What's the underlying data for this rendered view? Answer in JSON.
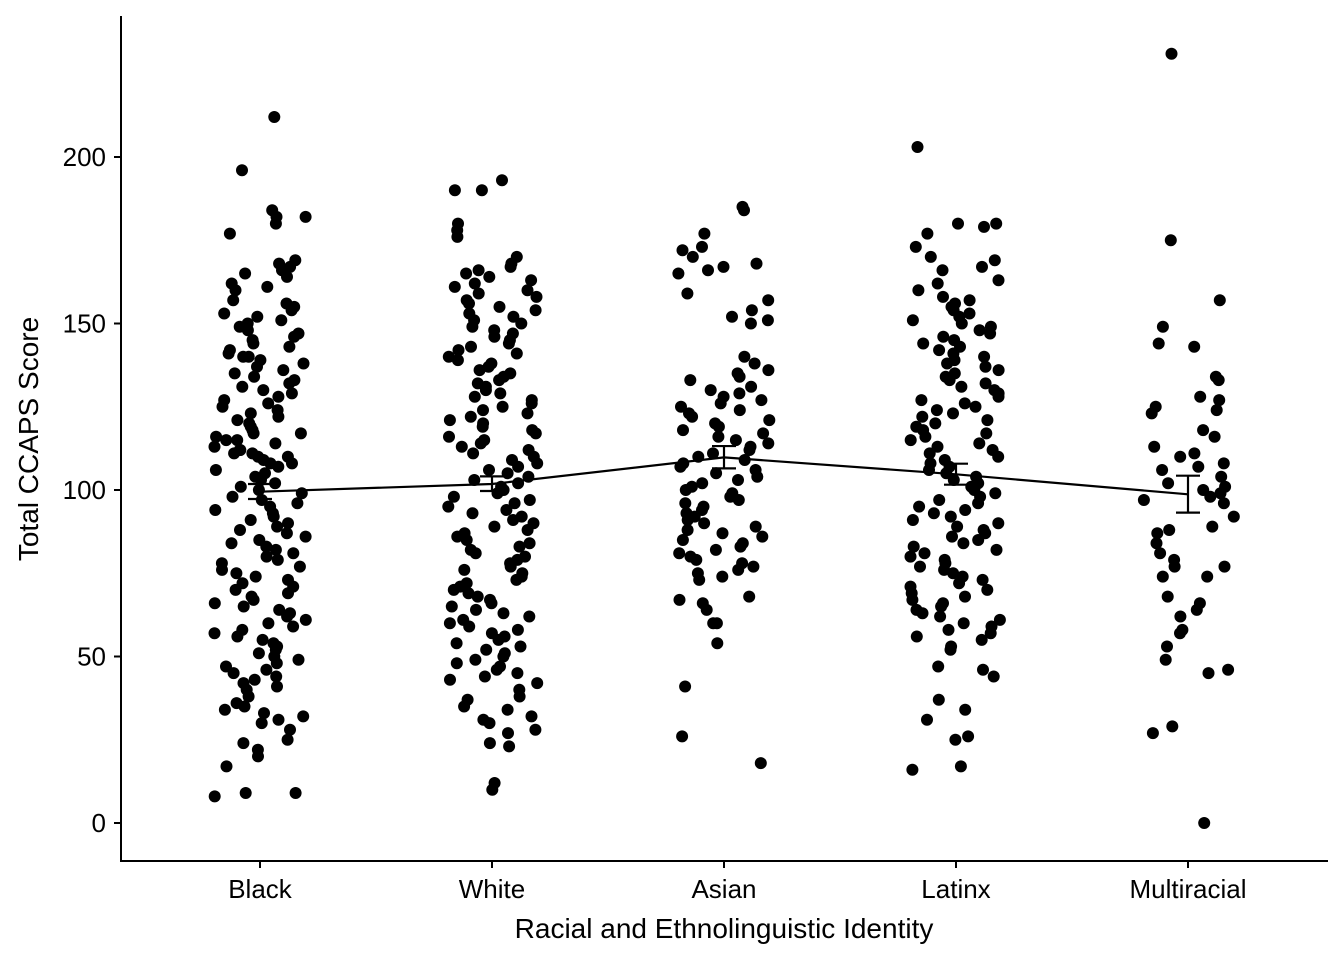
{
  "chart_data": {
    "type": "scatter",
    "xlabel": "Racial and Ethnolinguistic Identity",
    "ylabel": "Total CCAPS Score",
    "categories": [
      "Black",
      "White",
      "Asian",
      "Latinx",
      "Multiracial"
    ],
    "ylim": [
      -11,
      242
    ],
    "yticks": [
      0,
      50,
      100,
      150,
      200
    ],
    "grid": false,
    "legend": "none",
    "colors": {
      "points": "#000000",
      "line": "#000000"
    },
    "means": [
      99.5,
      101.8,
      109.8,
      104.7,
      98.7
    ],
    "error_bars": [
      {
        "low": 97.3,
        "high": 101.8
      },
      {
        "low": 99.7,
        "high": 104.1
      },
      {
        "low": 106.5,
        "high": 113.2
      },
      {
        "low": 101.6,
        "high": 107.9
      },
      {
        "low": 93.2,
        "high": 104.3
      }
    ],
    "points": [
      [
        212,
        196,
        184,
        182,
        182,
        180,
        177,
        169,
        168,
        167,
        166,
        165,
        164,
        162,
        161,
        160,
        157,
        156,
        155,
        154,
        153,
        152,
        151,
        150,
        149,
        148,
        147,
        146,
        145,
        144,
        143,
        142,
        141,
        140,
        140,
        139,
        138,
        137,
        136,
        135,
        134,
        133,
        132,
        131,
        130,
        129,
        128,
        127,
        126,
        125,
        124,
        123,
        122,
        121,
        120,
        119,
        118,
        117,
        117,
        116,
        115,
        115,
        114,
        113,
        112,
        112,
        111,
        111,
        110,
        110,
        109,
        108,
        108,
        107,
        106,
        105,
        104,
        103,
        102,
        101,
        100,
        99,
        98,
        97,
        96,
        95,
        94,
        93,
        92,
        91,
        90,
        89,
        88,
        87,
        86,
        85,
        84,
        83,
        82,
        81,
        80,
        79,
        78,
        77,
        76,
        75,
        74,
        73,
        72,
        71,
        70,
        69,
        68,
        67,
        66,
        65,
        64,
        63,
        62,
        61,
        60,
        59,
        58,
        57,
        56,
        55,
        54,
        53,
        52,
        51,
        50,
        49,
        48,
        47,
        46,
        45,
        44,
        43,
        42,
        41,
        40,
        38,
        36,
        35,
        34,
        33,
        32,
        31,
        30,
        28,
        25,
        24,
        22,
        20,
        17,
        9,
        9,
        8
      ],
      [
        193,
        190,
        190,
        180,
        178,
        176,
        170,
        168,
        167,
        166,
        165,
        164,
        163,
        162,
        161,
        160,
        159,
        158,
        157,
        156,
        155,
        154,
        153,
        152,
        151,
        150,
        149,
        148,
        147,
        146,
        145,
        144,
        143,
        142,
        141,
        140,
        139,
        138,
        137,
        136,
        135,
        134,
        133,
        132,
        131,
        130,
        129,
        128,
        127,
        126,
        125,
        124,
        123,
        122,
        121,
        120,
        119,
        118,
        117,
        116,
        115,
        114,
        113,
        112,
        111,
        110,
        109,
        108,
        107,
        106,
        105,
        104,
        103,
        102,
        101,
        100,
        99,
        98,
        97,
        96,
        95,
        94,
        93,
        92,
        91,
        90,
        89,
        88,
        87,
        86,
        85,
        84,
        83,
        82,
        81,
        80,
        79,
        78,
        77,
        76,
        75,
        74,
        73,
        72,
        71,
        70,
        69,
        68,
        67,
        66,
        65,
        64,
        63,
        62,
        61,
        60,
        59,
        58,
        57,
        56,
        55,
        54,
        53,
        52,
        51,
        50,
        49,
        48,
        47,
        46,
        45,
        44,
        43,
        42,
        40,
        38,
        37,
        35,
        34,
        32,
        31,
        30,
        28,
        27,
        24,
        23,
        12,
        10
      ],
      [
        185,
        184,
        177,
        173,
        172,
        170,
        168,
        167,
        166,
        165,
        159,
        157,
        154,
        152,
        151,
        150,
        140,
        138,
        136,
        135,
        134,
        133,
        131,
        130,
        129,
        128,
        127,
        126,
        125,
        124,
        123,
        122,
        121,
        120,
        119,
        118,
        117,
        116,
        115,
        114,
        113,
        112,
        111,
        110,
        109,
        108,
        107,
        106,
        105,
        104,
        103,
        102,
        101,
        100,
        99,
        98,
        97,
        96,
        95,
        94,
        93,
        92,
        91,
        90,
        89,
        88,
        87,
        86,
        85,
        84,
        83,
        82,
        81,
        80,
        79,
        78,
        77,
        76,
        75,
        74,
        73,
        68,
        67,
        66,
        64,
        60,
        60,
        54,
        41,
        26,
        18
      ],
      [
        203,
        180,
        180,
        179,
        177,
        173,
        170,
        169,
        167,
        166,
        163,
        162,
        160,
        158,
        157,
        156,
        155,
        154,
        153,
        152,
        151,
        150,
        149,
        148,
        147,
        146,
        145,
        144,
        143,
        142,
        141,
        140,
        139,
        138,
        137,
        136,
        135,
        134,
        133,
        132,
        131,
        130,
        129,
        128,
        127,
        126,
        125,
        124,
        123,
        122,
        121,
        120,
        119,
        118,
        117,
        116,
        115,
        114,
        113,
        112,
        111,
        110,
        109,
        108,
        107,
        106,
        105,
        104,
        103,
        102,
        101,
        100,
        99,
        98,
        97,
        96,
        95,
        94,
        93,
        92,
        91,
        90,
        89,
        88,
        87,
        86,
        85,
        84,
        83,
        82,
        81,
        80,
        79,
        78,
        77,
        76,
        75,
        74,
        73,
        72,
        71,
        70,
        69,
        68,
        67,
        66,
        65,
        64,
        63,
        62,
        61,
        60,
        59,
        58,
        57,
        56,
        55,
        53,
        52,
        47,
        46,
        44,
        37,
        34,
        31,
        26,
        25,
        17,
        16
      ],
      [
        231,
        175,
        157,
        149,
        144,
        143,
        134,
        133,
        128,
        127,
        125,
        124,
        123,
        118,
        116,
        113,
        111,
        110,
        108,
        107,
        106,
        104,
        102,
        101,
        100,
        99,
        98,
        97,
        96,
        92,
        89,
        88,
        87,
        84,
        81,
        79,
        77,
        77,
        74,
        74,
        68,
        66,
        64,
        62,
        58,
        57,
        53,
        49,
        46,
        45,
        29,
        27,
        0
      ]
    ]
  }
}
